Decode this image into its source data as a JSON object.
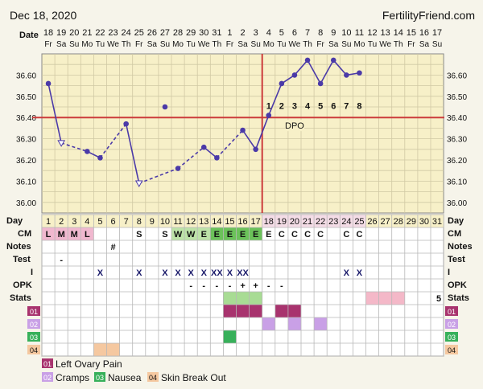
{
  "header": {
    "date": "Dec 18, 2020",
    "site": "FertilityFriend.com"
  },
  "labels": {
    "date": "Date",
    "day": "Day",
    "cm": "CM",
    "notes": "Notes",
    "test": "Test",
    "intercourse": "I",
    "opk": "OPK",
    "stats": "Stats",
    "dpo": "DPO"
  },
  "dates": [
    "18",
    "19",
    "20",
    "21",
    "22",
    "23",
    "24",
    "25",
    "26",
    "27",
    "28",
    "29",
    "30",
    "31",
    "1",
    "2",
    "3",
    "4",
    "5",
    "6",
    "7",
    "8",
    "9",
    "10",
    "11",
    "12",
    "13",
    "14",
    "15",
    "16",
    "17"
  ],
  "weekdays": [
    "Fr",
    "Sa",
    "Su",
    "Mo",
    "Tu",
    "We",
    "Th",
    "Fr",
    "Sa",
    "Su",
    "Mo",
    "Tu",
    "We",
    "Th",
    "Fr",
    "Sa",
    "Su",
    "Mo",
    "Tu",
    "We",
    "Th",
    "Fr",
    "Sa",
    "Su",
    "Mo",
    "Tu",
    "We",
    "Th",
    "Fr",
    "Sa",
    "Su"
  ],
  "cycle_days": [
    "1",
    "2",
    "3",
    "4",
    "5",
    "6",
    "7",
    "8",
    "9",
    "10",
    "11",
    "12",
    "13",
    "14",
    "15",
    "16",
    "17",
    "18",
    "19",
    "20",
    "21",
    "22",
    "23",
    "24",
    "25",
    "26",
    "27",
    "28",
    "29",
    "30",
    "31"
  ],
  "cm": [
    "L",
    "M",
    "M",
    "L",
    "",
    "",
    "",
    "S",
    "",
    "S",
    "W",
    "W",
    "E",
    "E",
    "E",
    "E",
    "E",
    "E",
    "C",
    "C",
    "C",
    "C",
    "",
    "C",
    "C",
    "",
    "",
    "",
    "",
    "",
    ""
  ],
  "notes": [
    "",
    "",
    "",
    "",
    "",
    "#",
    "",
    "",
    "",
    "",
    "",
    "",
    "",
    "",
    "",
    "",
    "",
    "",
    "",
    "",
    "",
    "",
    "",
    "",
    "",
    "",
    "",
    "",
    "",
    "",
    ""
  ],
  "test": [
    "",
    "-",
    "",
    "",
    "",
    "",
    "",
    "",
    "",
    "",
    "",
    "",
    "",
    "",
    "",
    "",
    "",
    "",
    "",
    "",
    "",
    "",
    "",
    "",
    "",
    "",
    "",
    "",
    "",
    "",
    ""
  ],
  "intercourse": [
    "",
    "",
    "",
    "",
    "X",
    "",
    "",
    "X",
    "",
    "X",
    "X",
    "X",
    "X",
    "XX",
    "X",
    "XX",
    "",
    "",
    "",
    "",
    "",
    "",
    "",
    "X",
    "X",
    "",
    "",
    "",
    "",
    "",
    ""
  ],
  "opk": [
    "",
    "",
    "",
    "",
    "",
    "",
    "",
    "",
    "",
    "",
    "",
    "-",
    "-",
    "-",
    "-",
    "+",
    "+",
    "-",
    "-",
    "",
    "",
    "",
    "",
    "",
    "",
    "",
    "",
    "",
    "",
    "",
    ""
  ],
  "stats_value": "5",
  "symptom_rows": [
    {
      "code": "01",
      "color": "#a8336e",
      "days": [
        15,
        16,
        17,
        19,
        20
      ]
    },
    {
      "code": "02",
      "color": "#c9a0e6",
      "days": [
        18,
        20,
        22
      ]
    },
    {
      "code": "03",
      "color": "#37b05a",
      "days": [
        15
      ]
    },
    {
      "code": "04",
      "color": "#f5c8a0",
      "days": [
        5,
        6
      ]
    }
  ],
  "legend": [
    {
      "code": "01",
      "label": "Left Ovary Pain",
      "color": "#a8336e"
    },
    {
      "code": "02",
      "label": "Cramps",
      "color": "#c9a0e6"
    },
    {
      "code": "03",
      "label": "Nausea",
      "color": "#37b05a"
    },
    {
      "code": "04",
      "label": "Skin Break Out",
      "color": "#f5c8a0"
    }
  ],
  "dpo_numbers": [
    "1",
    "2",
    "3",
    "4",
    "5",
    "6",
    "7",
    "8"
  ],
  "chart_data": {
    "type": "line",
    "title": "",
    "y_ticks": [
      "36.60",
      "36.50",
      "36.40",
      "36.30",
      "36.20",
      "36.10",
      "36.00"
    ],
    "ylim": [
      35.95,
      36.7
    ],
    "coverline": 36.4,
    "ovulation_day": 17,
    "points": [
      {
        "day": 1,
        "temp": 36.56
      },
      {
        "day": 2,
        "temp": 36.28,
        "open": true
      },
      {
        "day": 4,
        "temp": 36.24
      },
      {
        "day": 5,
        "temp": 36.21
      },
      {
        "day": 7,
        "temp": 36.37
      },
      {
        "day": 8,
        "temp": 36.09,
        "open": true
      },
      {
        "day": 10,
        "temp": 36.45
      },
      {
        "day": 11,
        "temp": 36.16
      },
      {
        "day": 13,
        "temp": 36.26
      },
      {
        "day": 14,
        "temp": 36.21
      },
      {
        "day": 16,
        "temp": 36.34
      },
      {
        "day": 17,
        "temp": 36.25
      },
      {
        "day": 18,
        "temp": 36.41
      },
      {
        "day": 19,
        "temp": 36.56
      },
      {
        "day": 20,
        "temp": 36.6
      },
      {
        "day": 21,
        "temp": 36.67
      },
      {
        "day": 22,
        "temp": 36.56
      },
      {
        "day": 23,
        "temp": 36.67
      },
      {
        "day": 24,
        "temp": 36.6
      },
      {
        "day": 25,
        "temp": 36.61
      }
    ],
    "segments": [
      {
        "from": 1,
        "to": 2,
        "style": "solid"
      },
      {
        "from": 2,
        "to": 4,
        "style": "dashed"
      },
      {
        "from": 4,
        "to": 5,
        "style": "solid"
      },
      {
        "from": 5,
        "to": 7,
        "style": "dashed"
      },
      {
        "from": 7,
        "to": 8,
        "style": "solid"
      },
      {
        "from": 8,
        "to": 11,
        "style": "dashed"
      },
      {
        "from": 11,
        "to": 13,
        "style": "dashed"
      },
      {
        "from": 13,
        "to": 14,
        "style": "solid"
      },
      {
        "from": 14,
        "to": 16,
        "style": "dashed"
      },
      {
        "from": 16,
        "to": 17,
        "style": "solid"
      },
      {
        "from": 17,
        "to": 18,
        "style": "solid"
      },
      {
        "from": 18,
        "to": 19,
        "style": "solid"
      },
      {
        "from": 19,
        "to": 20,
        "style": "solid"
      },
      {
        "from": 20,
        "to": 21,
        "style": "solid"
      },
      {
        "from": 21,
        "to": 22,
        "style": "solid"
      },
      {
        "from": 22,
        "to": 23,
        "style": "solid"
      },
      {
        "from": 23,
        "to": 24,
        "style": "solid"
      },
      {
        "from": 24,
        "to": 25,
        "style": "solid"
      }
    ]
  },
  "colors": {
    "background": "#f6f4ea",
    "chart_bg": "#f7f0c8",
    "grid": "#d0c9a4",
    "line": "#4b3aa8",
    "ovulation_line": "#cc3b3b",
    "table_bg": "#ffffff",
    "cm_menstrual": "#f0b8cf",
    "cm_green_light": "#bde3a8",
    "cm_green_dark": "#6bc25a",
    "stats_green": "#a8dc94",
    "stats_pink": "#f4b8c8"
  }
}
